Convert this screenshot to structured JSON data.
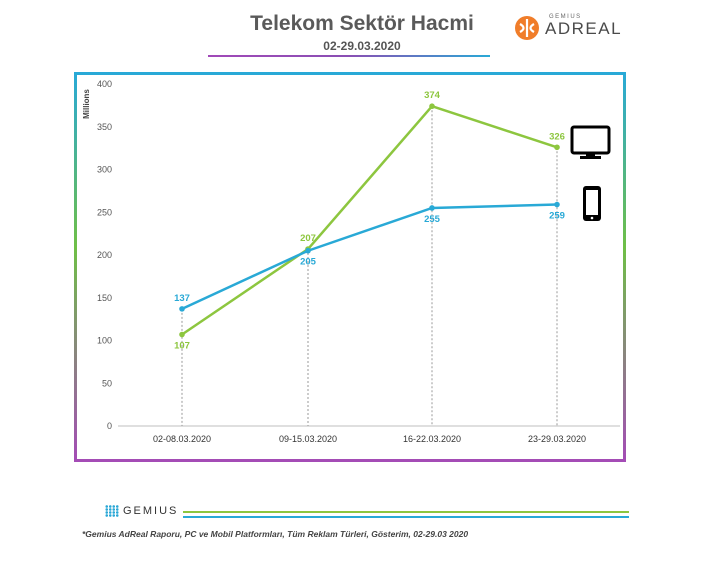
{
  "header": {
    "title": "Telekom Sektör Hacmi",
    "subtitle": "02-29.03.2020",
    "brand_small": "GEMIUS",
    "brand_big": "ADREAL"
  },
  "chart_data": {
    "type": "line",
    "title": "Telekom Sektör Hacmi",
    "subtitle": "02-29.03.2020",
    "ylabel": "Millions",
    "xlabel": "",
    "categories": [
      "02-08.03.2020",
      "09-15.03.2020",
      "16-22.03.2020",
      "23-29.03.2020"
    ],
    "ylim": [
      0,
      400
    ],
    "yticks": [
      0,
      50,
      100,
      150,
      200,
      250,
      300,
      350,
      400
    ],
    "series": [
      {
        "icon": "desktop-monitor-icon",
        "color": "#8dc63f",
        "values": [
          107,
          207,
          374,
          326
        ]
      },
      {
        "icon": "mobile-phone-icon",
        "color": "#29a9d6",
        "values": [
          137,
          205,
          255,
          259
        ]
      }
    ],
    "grid": false,
    "legend": "icons-right"
  },
  "footer": {
    "logo": "GEMIUS",
    "note": "*Gemius AdReal Raporu, PC ve Mobil Platformları, Tüm Reklam Türleri, Gösterim, 02-29.03 2020"
  }
}
